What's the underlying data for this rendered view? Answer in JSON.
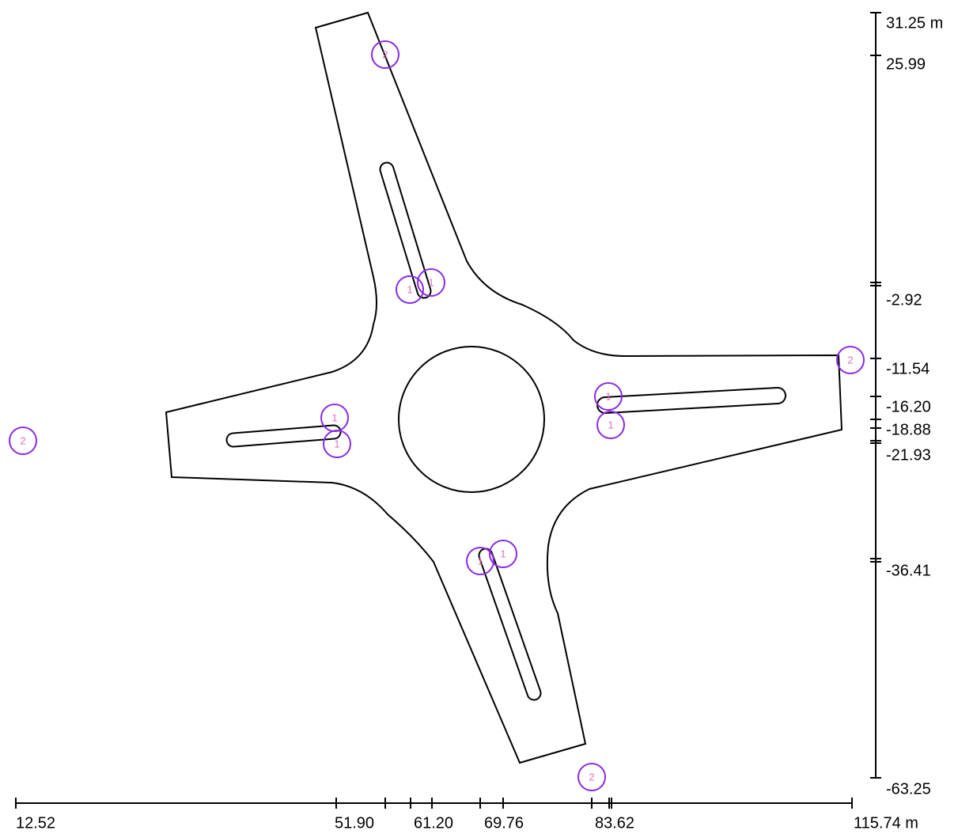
{
  "x_axis": {
    "labels": [
      "12.52",
      "51.90",
      "61.20",
      "69.76",
      "83.62",
      "115.74 m"
    ]
  },
  "y_axis": {
    "labels": [
      "31.25 m",
      "25.99",
      "-2.92",
      "-11.54",
      "-16.20",
      "-18.88",
      "-21.93",
      "-36.41",
      "-63.25"
    ]
  },
  "markers": [
    "2",
    "1",
    "1",
    "2",
    "1",
    "1",
    "1",
    "1",
    "2",
    "1",
    "1",
    "2"
  ]
}
